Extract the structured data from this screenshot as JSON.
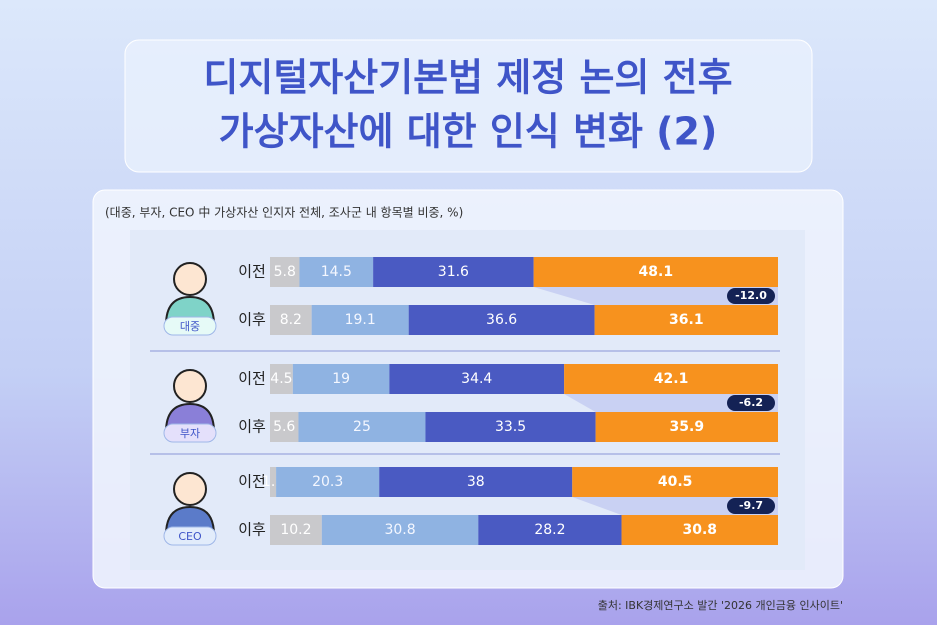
{
  "chart_data": {
    "type": "stacked-bar",
    "title": [
      "디지털자산기본법 제정 논의 전후",
      "가상자산에 대한 인식 변화 (2)"
    ],
    "subtitle": "(대중, 부자, CEO 中 가상자산 인지자 전체, 조사군 내 항목별 비중, %)",
    "xlim": [
      0,
      100
    ],
    "colors": [
      "#c9c9cc",
      "#8fb3e2",
      "#4a5ac2",
      "#f7921e"
    ],
    "groups": [
      {
        "name": "대중",
        "rows": [
          {
            "label": "이전",
            "values": [
              5.8,
              14.5,
              31.6,
              48.1
            ]
          },
          {
            "label": "이후",
            "values": [
              8.2,
              19.1,
              36.6,
              36.1
            ]
          }
        ],
        "change": -12,
        "change_label": "-12.0"
      },
      {
        "name": "부자",
        "rows": [
          {
            "label": "이전",
            "values": [
              4.5,
              19.0,
              34.4,
              42.1
            ]
          },
          {
            "label": "이후",
            "values": [
              5.6,
              25.0,
              33.5,
              35.9
            ]
          }
        ],
        "change": -6.2,
        "change_label": "-6.2"
      },
      {
        "name": "CEO",
        "rows": [
          {
            "label": "이전",
            "values": [
              1.2,
              20.3,
              38.0,
              40.5
            ]
          },
          {
            "label": "이후",
            "values": [
              10.2,
              30.8,
              28.2,
              30.8
            ]
          }
        ],
        "change": -9.7,
        "change_label": "-9.7"
      }
    ],
    "source": "출처: IBK경제연구소 발간 '2026 개인금융 인사이트'"
  }
}
